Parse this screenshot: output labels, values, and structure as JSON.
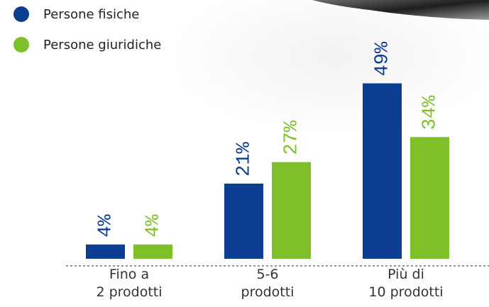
{
  "chart_data": {
    "type": "bar",
    "categories": [
      "Fino a\n2 prodotti",
      "5-6\nprodotti",
      "Più di\n10 prodotti"
    ],
    "series": [
      {
        "name": "Persone fisiche",
        "color": "#0b3d91",
        "values": [
          4,
          21,
          49
        ],
        "value_labels": [
          "4%",
          "21%",
          "49%"
        ]
      },
      {
        "name": "Persone giuridiche",
        "color": "#7fbf2a",
        "values": [
          4,
          27,
          34
        ],
        "value_labels": [
          "4%",
          "27%",
          "34%"
        ]
      }
    ]
  }
}
